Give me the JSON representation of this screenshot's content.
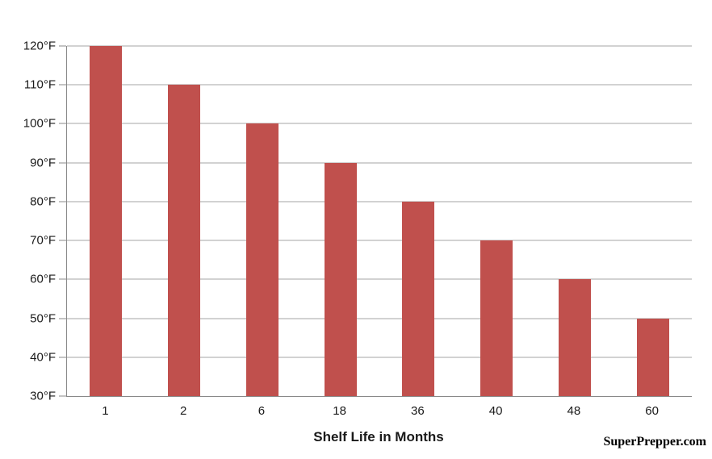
{
  "chart_data": {
    "type": "bar",
    "title": "",
    "categories": [
      "1",
      "2",
      "6",
      "18",
      "36",
      "40",
      "48",
      "60"
    ],
    "values": [
      120,
      110,
      100,
      90,
      80,
      70,
      60,
      50
    ],
    "xlabel": "Shelf Life in Months",
    "ylabel": "",
    "ylim": [
      30,
      120
    ],
    "ytick_step": 10,
    "ytick_suffix": "°F",
    "ytick_labels": [
      "30°F",
      "40°F",
      "50°F",
      "60°F",
      "70°F",
      "80°F",
      "90°F",
      "100°F",
      "110°F",
      "120°F"
    ],
    "grid": true,
    "legend": false,
    "colors": {
      "bar": "#C0504D",
      "gridline": "#A6A6A6",
      "axis": "#898989",
      "text": "#1A1A1A"
    }
  },
  "watermark": "SuperPrepper.com"
}
